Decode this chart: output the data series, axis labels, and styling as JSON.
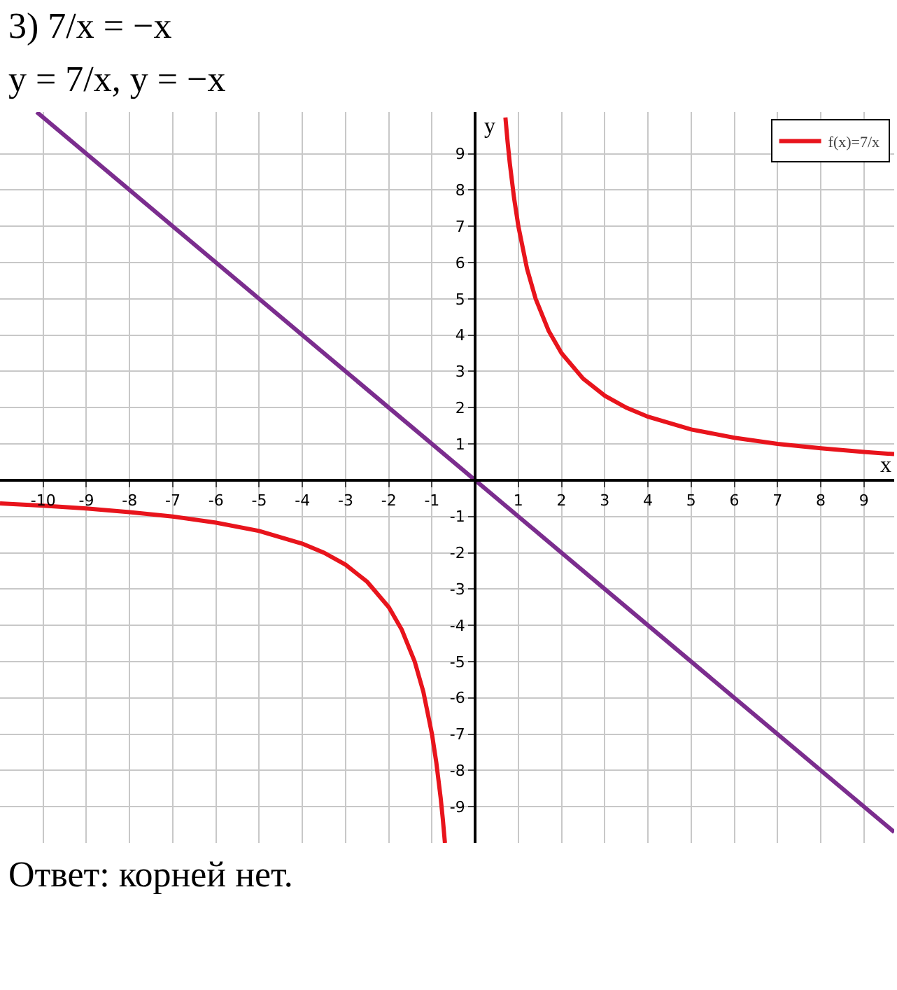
{
  "chart_data": {
    "type": "line",
    "title": "3) 7/x = −x",
    "subtitle": "y = 7/x,      y = −x",
    "xlabel": "x",
    "ylabel": "y",
    "annotations": [
      "Ответ: корней нет."
    ],
    "x": [
      -11,
      -10,
      -9,
      -8,
      -7,
      -6,
      -5,
      -4,
      -3.5,
      -3,
      -2.5,
      -2,
      -1.7,
      -1.4,
      -1.2,
      -1,
      -0.9,
      -0.8,
      -0.75,
      -0.7,
      0,
      0.7,
      0.75,
      0.8,
      0.9,
      1,
      1.2,
      1.4,
      1.7,
      2,
      2.5,
      3,
      3.5,
      4,
      5,
      6,
      7,
      8,
      9,
      9.7
    ],
    "series": [
      {
        "name": "f(x)=7/x",
        "color": "#e8141c",
        "values": [
          -0.64,
          -0.7,
          -0.78,
          -0.88,
          -1,
          -1.17,
          -1.4,
          -1.75,
          -2,
          -2.33,
          -2.8,
          -3.5,
          -4.12,
          -5,
          -5.83,
          -7,
          -7.78,
          -8.75,
          -9.33,
          -10,
          null,
          10,
          9.33,
          8.75,
          7.78,
          7,
          5.83,
          5,
          4.12,
          3.5,
          2.8,
          2.33,
          2,
          1.75,
          1.4,
          1.17,
          1,
          0.88,
          0.78,
          0.72
        ]
      },
      {
        "color": "#7b2d8e",
        "x": [
          -10.15,
          9.7
        ],
        "values": [
          10.15,
          -9.7
        ]
      }
    ],
    "xlim": [
      -11,
      9.7
    ],
    "ylim": [
      -10,
      10.15
    ],
    "xticks": [
      -10,
      -9,
      -8,
      -7,
      -6,
      -5,
      -4,
      -3,
      -2,
      -1,
      1,
      2,
      3,
      4,
      5,
      6,
      7,
      8,
      9
    ],
    "yticks": [
      -9,
      -8,
      -7,
      -6,
      -5,
      -4,
      -3,
      -2,
      -1,
      1,
      2,
      3,
      4,
      5,
      6,
      7,
      8,
      9
    ],
    "grid": true,
    "legend": "top right",
    "marker": "none",
    "line_style": "solid"
  }
}
